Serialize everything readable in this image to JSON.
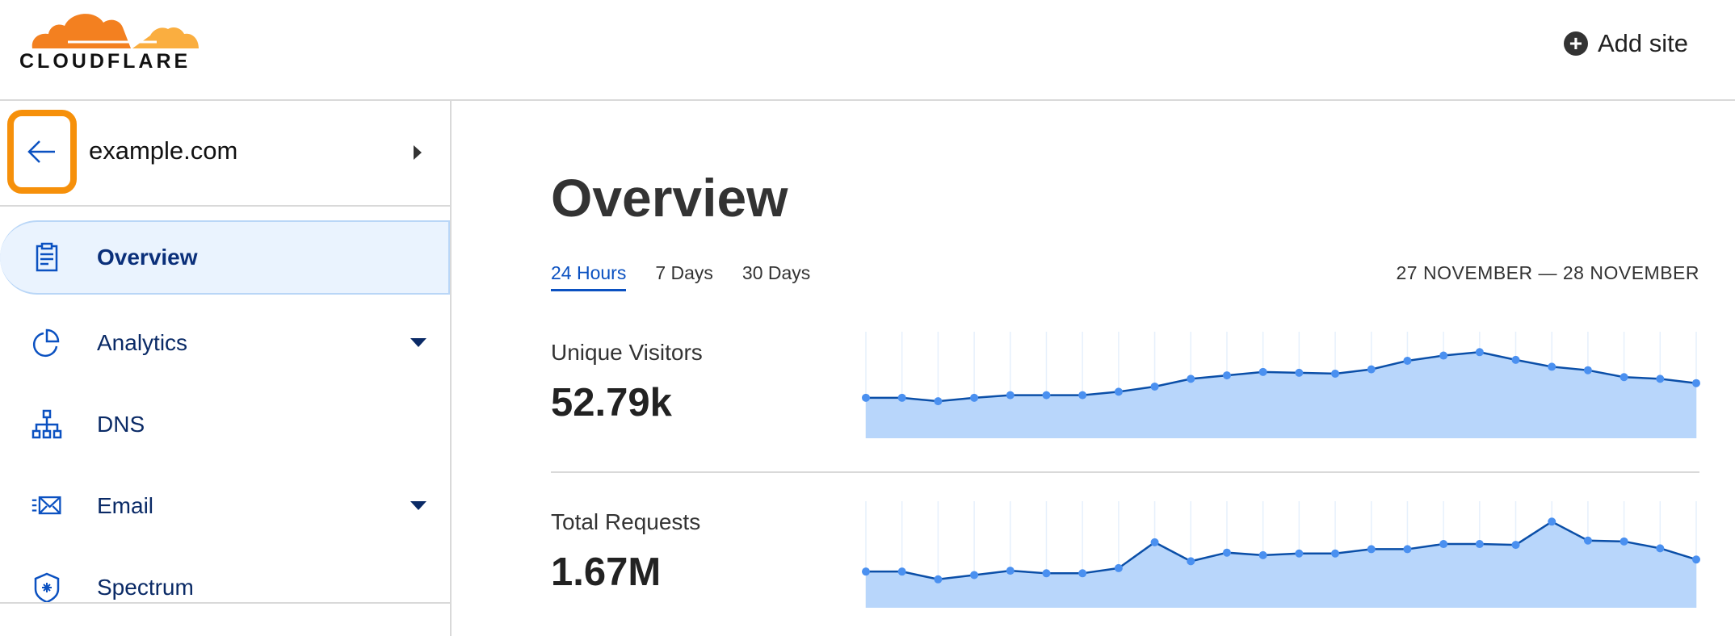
{
  "header": {
    "logo_text": "CLOUDFLARE",
    "add_site_label": "Add site",
    "add_icon": "plus-circle-icon"
  },
  "sidebar": {
    "domain": "example.com",
    "back_icon": "arrow-left-icon",
    "highlight_color": "#f6900a",
    "items": [
      {
        "label": "Overview",
        "icon": "clipboard-icon",
        "active": true,
        "expandable": false
      },
      {
        "label": "Analytics",
        "icon": "pie-chart-icon",
        "active": false,
        "expandable": true
      },
      {
        "label": "DNS",
        "icon": "network-icon",
        "active": false,
        "expandable": false
      },
      {
        "label": "Email",
        "icon": "envelope-icon",
        "active": false,
        "expandable": true
      },
      {
        "label": "Spectrum",
        "icon": "shield-icon",
        "active": false,
        "expandable": false
      }
    ]
  },
  "main": {
    "title": "Overview",
    "tabs": [
      {
        "label": "24 Hours",
        "active": true
      },
      {
        "label": "7 Days"
      },
      {
        "label": "30 Days"
      }
    ],
    "date_range": "27 NOVEMBER — 28 NOVEMBER",
    "metrics": [
      {
        "label": "Unique Visitors",
        "value": "52.79k"
      },
      {
        "label": "Total Requests",
        "value": "1.67M"
      }
    ]
  },
  "chart_data": [
    {
      "type": "area",
      "series": [
        {
          "values": [
            47,
            47,
            43,
            47,
            50,
            50,
            50,
            54,
            60,
            69,
            73,
            77,
            76,
            75,
            80,
            90,
            96,
            100,
            91,
            83,
            79,
            71,
            69,
            64
          ]
        }
      ],
      "ylim": [
        0,
        100
      ],
      "grid": "vertical",
      "line_color": "#0b4fa8",
      "fill_color": "#b8d6fb",
      "point_color": "#4a90f0"
    },
    {
      "type": "area",
      "series": [
        {
          "values": [
            42,
            42,
            33,
            38,
            43,
            40,
            40,
            46,
            76,
            54,
            64,
            61,
            63,
            63,
            68,
            68,
            74,
            74,
            73,
            100,
            78,
            77,
            69,
            56
          ]
        }
      ],
      "ylim": [
        0,
        100
      ],
      "grid": "vertical",
      "line_color": "#0b4fa8",
      "fill_color": "#b8d6fb",
      "point_color": "#4a90f0"
    }
  ]
}
